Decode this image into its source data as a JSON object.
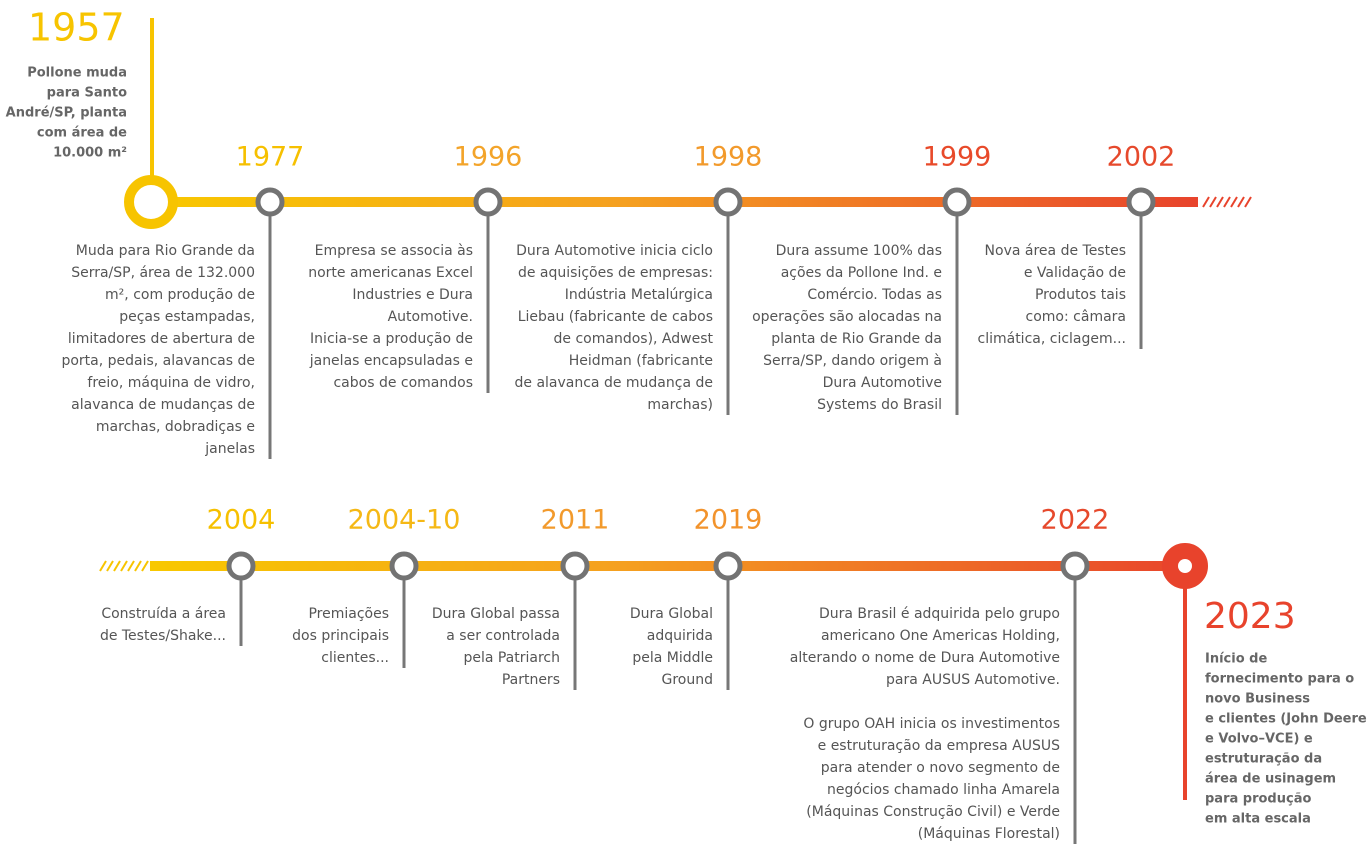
{
  "start": {
    "year": "1957",
    "lines": [
      "Pollone muda",
      "para Santo",
      "André/SP, planta",
      "com área de",
      "10.000 m²"
    ]
  },
  "top_events": [
    {
      "year": "1977",
      "color": "#f6c000",
      "lines": [
        "Muda para Rio Grande da",
        "Serra/SP, área de 132.000",
        "m², com produção de",
        "peças estampadas,",
        "limitadores de abertura de",
        "porta, pedais, alavancas de",
        "freio, máquina de vidro,",
        "alavanca de mudanças de",
        "marchas, dobradiças e",
        "janelas"
      ]
    },
    {
      "year": "1996",
      "color": "#f3a42a",
      "lines": [
        "Empresa se associa às",
        "norte americanas Excel",
        "Industries e Dura",
        "Automotive.",
        "Inicia-se a produção de",
        "janelas encapsuladas e",
        "cabos de comandos"
      ]
    },
    {
      "year": "1998",
      "color": "#f29a2c",
      "lines": [
        "Dura Automotive inicia ciclo",
        "de aquisições de empresas:",
        "Indústria Metalúrgica",
        "Liebau (fabricante de cabos",
        "de comandos), Adwest",
        "Heidman (fabricante",
        "de alavanca de mudança de",
        "marchas)"
      ]
    },
    {
      "year": "1999",
      "color": "#e84a2a",
      "lines": [
        "Dura assume 100% das",
        "ações da Pollone Ind. e",
        "Comércio. Todas as",
        "operações são alocadas na",
        "planta de Rio Grande da",
        "Serra/SP, dando origem à",
        "Dura Automotive",
        "Systems do Brasil"
      ]
    },
    {
      "year": "2002",
      "color": "#e6492c",
      "lines": [
        "Nova área de Testes",
        "e Validação de",
        "Produtos tais",
        "como: câmara",
        "climática, ciclagem..."
      ]
    }
  ],
  "bottom_events": [
    {
      "year": "2004",
      "color": "#f6c000",
      "lines": [
        "Construída a área",
        "de Testes/Shake..."
      ]
    },
    {
      "year": "2004-10",
      "color": "#f5b815",
      "lines": [
        "Premiações",
        "dos principais",
        "clientes..."
      ]
    },
    {
      "year": "2011",
      "color": "#f29a2c",
      "lines": [
        "Dura Global passa",
        "a ser controlada",
        "pela Patriarch",
        "Partners"
      ]
    },
    {
      "year": "2019",
      "color": "#f2932c",
      "lines": [
        "Dura Global",
        "adquirida",
        "pela Middle",
        "Ground"
      ]
    },
    {
      "year": "2022",
      "color": "#e6492c",
      "lines": [
        "Dura Brasil é adquirida pelo grupo",
        "americano One Americas Holding,",
        "alterando o nome de Dura Automotive",
        "para AUSUS Automotive.",
        "",
        "O grupo OAH inicia os investimentos",
        "e estruturação da empresa AUSUS",
        "para atender o novo segmento de",
        "negócios chamado linha Amarela",
        "(Máquinas Construção Civil) e Verde",
        "(Máquinas Florestal)"
      ]
    }
  ],
  "end": {
    "year": "2023",
    "lines": [
      "Início de",
      "fornecimento  para o",
      "novo Business",
      "e clientes (John Deere",
      "e Volvo–VCE)  e",
      "estruturação da",
      "área de usinagem",
      "para produção",
      "em alta escala"
    ]
  }
}
